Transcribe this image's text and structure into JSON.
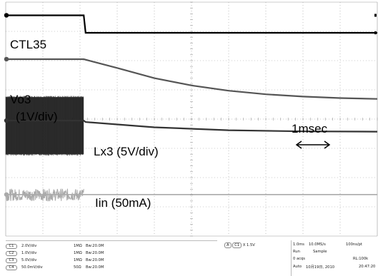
{
  "chart_data": {
    "type": "line",
    "title": "",
    "xlabel": "",
    "ylabel": "",
    "grid": true,
    "grid_divisions": {
      "x": 10,
      "y": 8
    },
    "time_per_div_ms": 1.0,
    "x_range_div": [
      0,
      10
    ],
    "traces": [
      {
        "name": "CTL35",
        "color": "#000000",
        "behavior": "high until falling step at ~2.1 div, then low flat",
        "points_div": [
          [
            0,
            3.55
          ],
          [
            2.1,
            3.55
          ],
          [
            2.15,
            2.95
          ],
          [
            10,
            2.95
          ]
        ]
      },
      {
        "name": "Vo3",
        "label": "(1V/div)",
        "color": "#555555",
        "behavior": "flat until ~2.1 div, then exponential decay",
        "points_div": [
          [
            0,
            2.05
          ],
          [
            2.1,
            2.05
          ],
          [
            3,
            1.75
          ],
          [
            4,
            1.4
          ],
          [
            5,
            1.15
          ],
          [
            6,
            0.97
          ],
          [
            7,
            0.85
          ],
          [
            8,
            0.77
          ],
          [
            9,
            0.72
          ],
          [
            10,
            0.69
          ]
        ]
      },
      {
        "name": "Lx3",
        "label": "(5V/div)",
        "color": "#333333",
        "behavior": "switching burst band until ~2.1 div, then slow decay",
        "points_div": [
          [
            0,
            -0.05
          ],
          [
            2.1,
            -0.05
          ],
          [
            2.15,
            -0.1
          ],
          [
            4,
            -0.28
          ],
          [
            6,
            -0.38
          ],
          [
            8,
            -0.42
          ],
          [
            10,
            -0.43
          ]
        ],
        "band_div": [
          -1.2,
          0.75
        ]
      },
      {
        "name": "Iin",
        "label": "(50mA)",
        "color": "#aaaaaa",
        "behavior": "noise band until ~2.1 div, then flat",
        "points_div": [
          [
            0,
            -2.58
          ],
          [
            10,
            -2.58
          ]
        ],
        "band_div": [
          -2.8,
          -2.38
        ]
      }
    ]
  },
  "labels": {
    "ctl35": "CTL35",
    "vo3": "Vo3",
    "vo3_scale": "(1V/div)",
    "lx3": "Lx3 (5V/div)",
    "iin": "Iin (50mA)",
    "time_marker": "1msec"
  },
  "status": {
    "channels": [
      {
        "badge": "C1",
        "scale": "2.0V/div",
        "impedance": "1MΩ",
        "bw": "Bw:20.0M"
      },
      {
        "badge": "C2",
        "scale": "1.0V/div",
        "impedance": "1MΩ",
        "bw": "Bw:20.0M"
      },
      {
        "badge": "C3",
        "scale": "5.0V/div",
        "impedance": "1MΩ",
        "bw": "Bw:20.0M"
      },
      {
        "badge": "C4",
        "scale": "50.0mV/div",
        "impedance": "50Ω",
        "bw": "Bw:20.0M"
      }
    ],
    "trigger": {
      "mode": "A",
      "channel": "C1",
      "edge": "X",
      "level": "1.5V"
    },
    "timebase": {
      "time_div": "1.0ms",
      "sample_rate": "10.0MS/s",
      "pt_rate": "100ns/pt",
      "state": "Run",
      "acq_mode": "Sample",
      "acqs": "0 acqs",
      "record_length": "RL:100k",
      "trigger_mode": "Auto",
      "date": "10月19日, 2010",
      "time": "20:47:20"
    }
  },
  "colors": {
    "screen": "#ffffff",
    "grid": "#9a9a9a",
    "ctl35": "#000000",
    "vo3": "#555555",
    "lx3": "#333333",
    "iin": "#aaaaaa",
    "marker": "#000000"
  },
  "icons": {
    "time_marker": "double-headed-arrow-icon",
    "channel_marker": "ground-marker-icon"
  }
}
